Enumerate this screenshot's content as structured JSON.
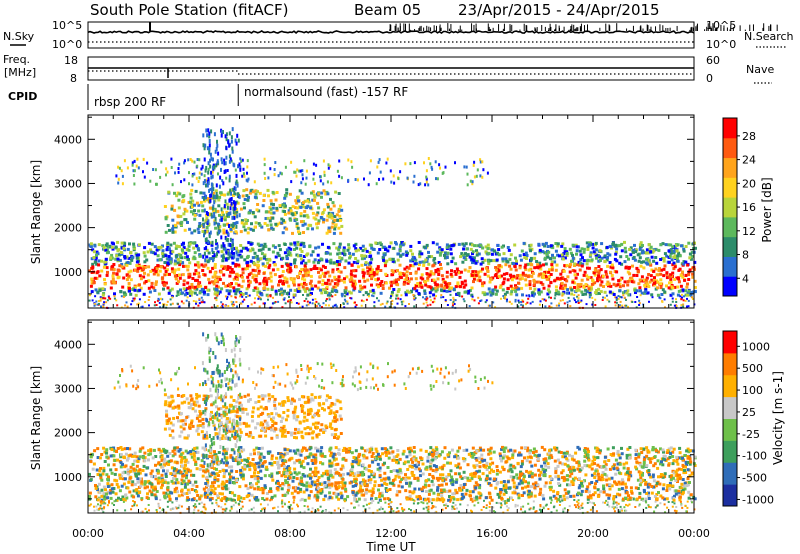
{
  "chart_data": {
    "type": "heatmap",
    "title": "South Pole Station (fitACF)",
    "beam_label": "Beam 05",
    "date_range": "23/Apr/2015 - 24/Apr/2015",
    "xlabel": "Time UT",
    "x_ticks": [
      "00:00",
      "04:00",
      "08:00",
      "12:00",
      "16:00",
      "20:00",
      "00:00"
    ],
    "x_range_hours": [
      0,
      24
    ],
    "header_panels": {
      "nsky": {
        "label": "N.Sky",
        "ticks": [
          "10^5",
          "10^0"
        ],
        "right_label": "N.Search",
        "right_ticks": [
          "10^5",
          "10^0"
        ]
      },
      "freq": {
        "label_line1": "Freq.",
        "label_line2": "[MHz]",
        "ticks": [
          "18",
          "8"
        ],
        "right_label": "Nave",
        "right_ticks": [
          "60",
          "0"
        ]
      },
      "cpid": {
        "label": "CPID",
        "modes": [
          {
            "name": "rbsp 200 RF",
            "start_h": 0
          },
          {
            "name": "normalsound (fast) -157 RF",
            "start_h": 5.95
          }
        ]
      }
    },
    "panels": [
      {
        "name": "power",
        "ylabel": "Slant Range [km]",
        "y_ticks": [
          1000,
          2000,
          3000,
          4000
        ],
        "y_range_km": [
          180,
          4550
        ],
        "colorbar_label": "Power [dB]",
        "colorbar_ticks": [
          "28",
          "24",
          "20",
          "16",
          "12",
          "8",
          "4"
        ],
        "colorbar_colors": [
          "#0000ff",
          "#2a6fd0",
          "#2c8c6a",
          "#5cb85c",
          "#b8d43a",
          "#ffd21f",
          "#ffa41c",
          "#ff5a10",
          "#ff0000"
        ]
      },
      {
        "name": "velocity",
        "ylabel": "Slant Range [km]",
        "y_ticks": [
          1000,
          2000,
          3000,
          4000
        ],
        "y_range_km": [
          180,
          4550
        ],
        "colorbar_label": "Velocity [m s-1]",
        "colorbar_ticks": [
          "1000",
          "500",
          "100",
          "25",
          "-25",
          "-100",
          "-500",
          "-1000"
        ],
        "colorbar_colors": [
          "#1c2fa0",
          "#2f6db8",
          "#3d9f5c",
          "#6ec04a",
          "#c8c8c8",
          "#ffb000",
          "#ff7d00",
          "#ff0000"
        ]
      }
    ]
  }
}
